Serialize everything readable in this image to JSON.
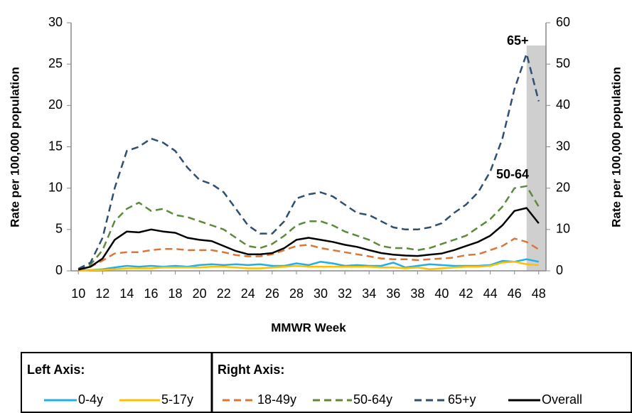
{
  "chart_data": {
    "type": "line",
    "x_label": "MMWR Week",
    "y_label": "Rate per 100,000 population",
    "y2_label": "Rate per 100,000 population",
    "x": [
      10,
      11,
      12,
      13,
      14,
      15,
      16,
      17,
      18,
      19,
      20,
      21,
      22,
      23,
      24,
      25,
      26,
      27,
      28,
      29,
      30,
      31,
      32,
      33,
      34,
      35,
      36,
      37,
      38,
      39,
      40,
      41,
      42,
      43,
      44,
      45,
      46,
      47,
      48
    ],
    "xlim": [
      9.4,
      48.6
    ],
    "xticks": [
      10,
      12,
      14,
      16,
      18,
      20,
      22,
      24,
      26,
      28,
      30,
      32,
      34,
      36,
      38,
      40,
      42,
      44,
      46,
      48
    ],
    "ylim": [
      0,
      30
    ],
    "yticks": [
      0,
      5,
      10,
      15,
      20,
      25,
      30
    ],
    "y2lim": [
      0,
      60
    ],
    "y2ticks": [
      0,
      10,
      20,
      30,
      40,
      50,
      60
    ],
    "highlight_x": [
      47,
      48
    ],
    "legend_groups": [
      "Left Axis:",
      "Right Axis:"
    ],
    "annotations": [
      {
        "text": "65+",
        "color": "#5b6fb5"
      },
      {
        "text": "50-64",
        "color": "#3daa5c"
      }
    ],
    "series": [
      {
        "name": "0-4y",
        "color": "#1fb0e8",
        "dashed": false,
        "values": [
          0.1,
          0.1,
          0.2,
          0.4,
          0.6,
          0.5,
          0.6,
          0.5,
          0.6,
          0.5,
          0.7,
          0.8,
          0.7,
          0.8,
          0.7,
          0.8,
          0.6,
          0.6,
          0.9,
          0.7,
          1.1,
          0.9,
          0.6,
          0.7,
          0.6,
          0.6,
          1.0,
          0.4,
          0.6,
          0.8,
          0.7,
          0.6,
          0.6,
          0.6,
          0.7,
          1.2,
          1.1,
          1.4,
          1.1
        ]
      },
      {
        "name": "5-17y",
        "color": "#ffc000",
        "dashed": false,
        "values": [
          0,
          0.1,
          0.1,
          0.2,
          0.3,
          0.3,
          0.3,
          0.4,
          0.4,
          0.4,
          0.4,
          0.5,
          0.5,
          0.4,
          0.3,
          0.3,
          0.4,
          0.5,
          0.6,
          0.5,
          0.5,
          0.5,
          0.5,
          0.5,
          0.5,
          0.4,
          0.4,
          0.3,
          0.4,
          0.2,
          0.3,
          0.4,
          0.5,
          0.5,
          0.6,
          1.0,
          1.1,
          0.8,
          0.7
        ]
      },
      {
        "name": "18-49y",
        "color": "#d9773a",
        "dashed": true,
        "axis": "y2",
        "values": [
          0.2,
          1,
          2.5,
          4.2,
          4.5,
          4.5,
          5,
          5.3,
          5.3,
          5,
          5,
          5,
          4.5,
          3.8,
          3.5,
          3.5,
          4,
          5,
          6,
          6.3,
          5.5,
          5,
          4.5,
          4,
          3.5,
          3,
          2.8,
          2.8,
          2.6,
          2.8,
          3,
          3.2,
          3.8,
          4,
          5,
          6,
          7.8,
          7,
          5.2
        ]
      },
      {
        "name": "50-64y",
        "color": "#5b8a3c",
        "dashed": true,
        "axis": "y2",
        "values": [
          0.3,
          1.5,
          5,
          12,
          15,
          16.5,
          14.5,
          15,
          13.5,
          13,
          12,
          11,
          10,
          8,
          6,
          5.5,
          6.5,
          8.5,
          11,
          12,
          12,
          11,
          9.5,
          8.5,
          7.5,
          6,
          5.5,
          5.5,
          5,
          5.5,
          6.5,
          7.5,
          8.5,
          10.5,
          12.5,
          15.5,
          20,
          20.5,
          15.5
        ]
      },
      {
        "name": "65+y",
        "color": "#2e4f74",
        "dashed": true,
        "axis": "y2",
        "values": [
          0.5,
          2,
          8,
          20,
          29,
          30,
          32,
          31,
          29,
          25,
          22,
          21,
          19,
          15,
          11,
          9,
          9,
          12,
          17.5,
          18.5,
          19,
          18,
          16,
          14,
          13.5,
          12,
          10.5,
          10,
          10,
          10.5,
          11.5,
          14,
          16,
          19,
          24,
          32,
          44,
          52.5,
          41
        ]
      },
      {
        "name": "Overall",
        "color": "#000000",
        "dashed": false,
        "axis": "y2",
        "values": [
          0.3,
          1,
          3,
          7.5,
          9.5,
          9.3,
          10,
          9.5,
          9.2,
          8,
          7.5,
          7.2,
          6,
          4.8,
          4,
          4,
          4.3,
          5.5,
          7.5,
          8,
          7.5,
          7,
          6.3,
          5.8,
          5,
          4.3,
          3.9,
          3.7,
          3.6,
          3.9,
          4.2,
          5,
          6,
          7,
          8.5,
          11,
          14.5,
          15.2,
          11.5
        ]
      }
    ]
  }
}
